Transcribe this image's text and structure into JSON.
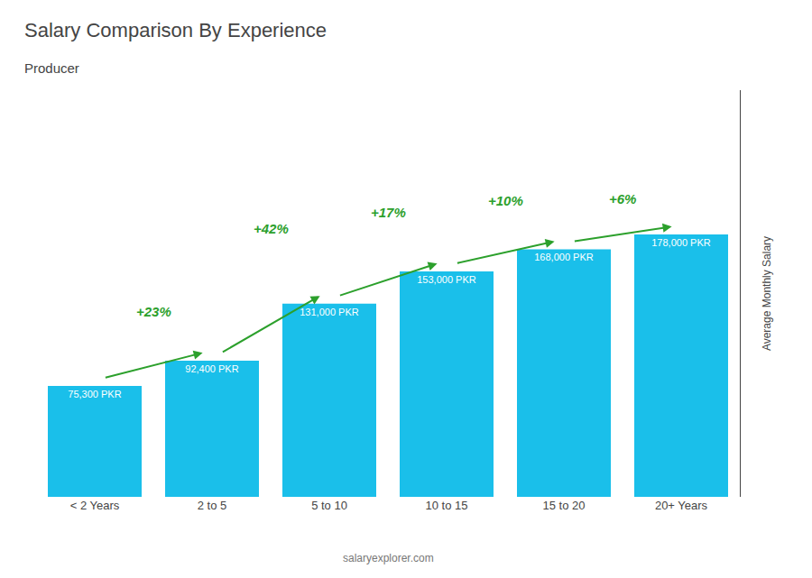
{
  "chart_data": {
    "type": "bar",
    "title": "Salary Comparison By Experience",
    "subtitle": "Producer",
    "y_label": "Average Monthly Salary",
    "categories": [
      "< 2 Years",
      "2 to 5",
      "5 to 10",
      "10 to 15",
      "15 to 20",
      "20+ Years"
    ],
    "values": [
      75300,
      92400,
      131000,
      153000,
      168000,
      178000
    ],
    "value_labels": [
      "75,300 PKR",
      "92,400 PKR",
      "131,000 PKR",
      "153,000 PKR",
      "168,000 PKR",
      "178,000 PKR"
    ],
    "data_labels": true,
    "color": "#1ABFEA",
    "ylim": [
      0,
      275900
    ],
    "yticks": [],
    "tick_labels": "x",
    "grid": false,
    "annotations": [
      {
        "from": "< 2 Years",
        "to": "2 to 5",
        "text": "+23%"
      },
      {
        "from": "2 to 5",
        "to": "5 to 10",
        "text": "+42%"
      },
      {
        "from": "5 to 10",
        "to": "10 to 15",
        "text": "+17%"
      },
      {
        "from": "10 to 15",
        "to": "15 to 20",
        "text": "+10%"
      },
      {
        "from": "15 to 20",
        "to": "20+ Years",
        "text": "+6%"
      },
      {
        "text": "salaryexplorer.com"
      }
    ]
  }
}
